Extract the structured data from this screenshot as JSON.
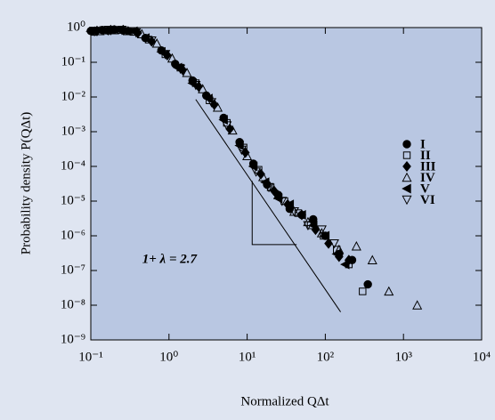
{
  "chart_data": {
    "type": "scatter",
    "x_label": "Normalized QΔt",
    "y_label": "Probability density  P(QΔt)",
    "xscale": "log",
    "yscale": "log",
    "xlim": [
      0.1,
      10000
    ],
    "ylim": [
      1e-09,
      1
    ],
    "xticks": [
      {
        "value": 0.1,
        "label": "10⁻¹"
      },
      {
        "value": 1,
        "label": "10⁰"
      },
      {
        "value": 10,
        "label": "10¹"
      },
      {
        "value": 100,
        "label": "10²"
      },
      {
        "value": 1000,
        "label": "10³"
      },
      {
        "value": 10000,
        "label": "10⁴"
      }
    ],
    "yticks": [
      {
        "value": 1,
        "label": "10⁰"
      },
      {
        "value": 0.1,
        "label": "10⁻¹"
      },
      {
        "value": 0.01,
        "label": "10⁻²"
      },
      {
        "value": 0.001,
        "label": "10⁻³"
      },
      {
        "value": 0.0001,
        "label": "10⁻⁴"
      },
      {
        "value": 1e-05,
        "label": "10⁻⁵"
      },
      {
        "value": 1e-06,
        "label": "10⁻⁶"
      },
      {
        "value": 1e-07,
        "label": "10⁻⁷"
      },
      {
        "value": 1e-08,
        "label": "10⁻⁸"
      },
      {
        "value": 1e-09,
        "label": "10⁻⁹"
      }
    ],
    "legend": "right",
    "plot_color": "#b9c7e2",
    "series": [
      {
        "name": "I",
        "marker": "circle",
        "filled": true,
        "color": "#000000",
        "x": [
          0.1,
          0.14,
          0.2,
          0.3,
          0.5,
          0.8,
          1.2,
          2,
          3,
          5,
          8,
          12,
          18,
          25,
          35,
          50,
          70,
          100,
          150,
          220,
          350
        ],
        "values": [
          0.8,
          0.85,
          0.88,
          0.8,
          0.5,
          0.22,
          0.09,
          0.03,
          0.011,
          0.0025,
          0.0005,
          0.00012,
          3e-05,
          1.5e-05,
          6e-06,
          4e-06,
          3e-06,
          1e-06,
          3e-07,
          2e-07,
          4e-08
        ]
      },
      {
        "name": "II",
        "marker": "square",
        "filled": false,
        "color": "#000000",
        "x": [
          0.11,
          0.16,
          0.24,
          0.35,
          0.55,
          0.9,
          1.4,
          2.2,
          3.3,
          5.5,
          9,
          14,
          20,
          30,
          45,
          65,
          95,
          140,
          200,
          300
        ],
        "values": [
          0.75,
          0.82,
          0.85,
          0.75,
          0.45,
          0.17,
          0.07,
          0.025,
          0.008,
          0.0018,
          0.00035,
          8e-05,
          2.5e-05,
          1e-05,
          4.5e-06,
          2e-06,
          1e-06,
          4e-07,
          1.5e-07,
          2.5e-08
        ]
      },
      {
        "name": "III",
        "marker": "diamond",
        "filled": true,
        "color": "#000000",
        "x": [
          0.12,
          0.18,
          0.26,
          0.4,
          0.6,
          0.95,
          1.5,
          2.4,
          3.8,
          6,
          9.5,
          15,
          22,
          33,
          50,
          75,
          110,
          150,
          200
        ],
        "values": [
          0.8,
          0.85,
          0.85,
          0.7,
          0.4,
          0.16,
          0.06,
          0.02,
          0.006,
          0.0012,
          0.00025,
          6e-05,
          2e-05,
          8e-06,
          4e-06,
          1.5e-06,
          6e-07,
          2.5e-07,
          2e-07
        ]
      },
      {
        "name": "IV",
        "marker": "triangle-up",
        "filled": false,
        "color": "#000000",
        "x": [
          0.13,
          0.2,
          0.3,
          0.45,
          0.7,
          1.1,
          1.7,
          2.7,
          4.2,
          6.5,
          10,
          16,
          25,
          40,
          60,
          90,
          150,
          250,
          400,
          650,
          1500
        ],
        "values": [
          0.8,
          0.85,
          0.8,
          0.65,
          0.35,
          0.13,
          0.05,
          0.017,
          0.005,
          0.0011,
          0.0002,
          5e-05,
          1.5e-05,
          5e-06,
          2.5e-06,
          1.2e-06,
          4e-07,
          5e-07,
          2e-07,
          2.5e-08,
          1e-08
        ]
      },
      {
        "name": "V",
        "marker": "triangle-left",
        "filled": true,
        "color": "#000000",
        "x": [
          0.1,
          0.15,
          0.23,
          0.35,
          0.5,
          0.8,
          1.3,
          2,
          3.2,
          5,
          8,
          12,
          17,
          25,
          35,
          50,
          70,
          100,
          140,
          180
        ],
        "values": [
          0.78,
          0.82,
          0.85,
          0.78,
          0.5,
          0.2,
          0.07,
          0.025,
          0.009,
          0.0022,
          0.0004,
          0.0001,
          3.5e-05,
          1.2e-05,
          8e-06,
          4e-06,
          2e-06,
          1e-06,
          3e-07,
          1.5e-07
        ]
      },
      {
        "name": "VI",
        "marker": "triangle-down",
        "filled": false,
        "color": "#000000",
        "x": [
          0.11,
          0.17,
          0.25,
          0.38,
          0.6,
          0.9,
          1.4,
          2.2,
          3.5,
          5.5,
          8.5,
          13,
          19,
          28,
          40,
          60,
          90,
          130
        ],
        "values": [
          0.8,
          0.85,
          0.85,
          0.72,
          0.42,
          0.17,
          0.065,
          0.022,
          0.007,
          0.0015,
          0.0003,
          7e-05,
          2.5e-05,
          1e-05,
          5e-06,
          2e-06,
          1.5e-06,
          6e-07
        ]
      }
    ],
    "reference_line": {
      "x": [
        2.2,
        157
      ],
      "values": [
        0.0085,
        6.4e-09
      ]
    },
    "slope_triangle": {
      "x": [
        11.6,
        11.6,
        43
      ],
      "values": [
        3.8e-05,
        5.6e-07,
        5.6e-07
      ]
    },
    "annotation": {
      "text": "1+ λ = 2.7",
      "x": 2.5,
      "value": 2e-07
    }
  }
}
